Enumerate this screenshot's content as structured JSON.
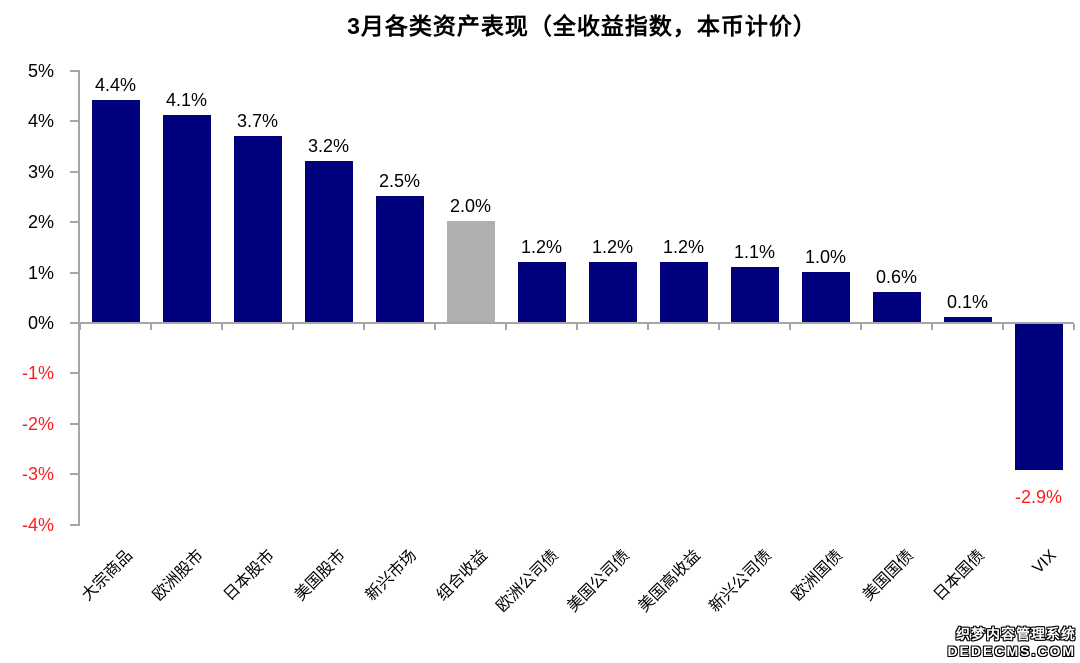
{
  "chart_data": {
    "type": "bar",
    "title": "3月各类资产表现（全收益指数，本币计价）",
    "categories": [
      "大宗商品",
      "欧洲股市",
      "日本股市",
      "美国股市",
      "新兴市场",
      "组合收益",
      "欧洲公司债",
      "美国公司债",
      "美国高收益",
      "新兴公司债",
      "欧洲国债",
      "美国国债",
      "日本国债",
      "VIX"
    ],
    "values": [
      4.4,
      4.1,
      3.7,
      3.2,
      2.5,
      2.0,
      1.2,
      1.2,
      1.2,
      1.1,
      1.0,
      0.6,
      0.1,
      -2.9
    ],
    "bar_labels": [
      "4.4%",
      "4.1%",
      "3.7%",
      "3.2%",
      "2.5%",
      "2.0%",
      "1.2%",
      "1.2%",
      "1.2%",
      "1.1%",
      "1.0%",
      "0.6%",
      "0.1%",
      "-2.9%"
    ],
    "bar_colors": [
      "#02017d",
      "#02017d",
      "#02017d",
      "#02017d",
      "#02017d",
      "#afafaf",
      "#02017d",
      "#02017d",
      "#02017d",
      "#02017d",
      "#02017d",
      "#02017d",
      "#02017d",
      "#02017d"
    ],
    "value_label_colors": [
      "#000000",
      "#000000",
      "#000000",
      "#000000",
      "#000000",
      "#000000",
      "#000000",
      "#000000",
      "#000000",
      "#000000",
      "#000000",
      "#000000",
      "#000000",
      "#fb1d1d"
    ],
    "y_ticks": [
      {
        "label": "5%",
        "value": 5
      },
      {
        "label": "4%",
        "value": 4
      },
      {
        "label": "3%",
        "value": 3
      },
      {
        "label": "2%",
        "value": 2
      },
      {
        "label": "1%",
        "value": 1
      },
      {
        "label": "0%",
        "value": 0
      },
      {
        "label": "-1%",
        "value": -1
      },
      {
        "label": "-2%",
        "value": -2
      },
      {
        "label": "-3%",
        "value": -3
      },
      {
        "label": "-4%",
        "value": -4
      }
    ],
    "ylim": [
      -4,
      5
    ],
    "xlabel": "",
    "ylabel": "",
    "grid": false,
    "legend": null
  },
  "colors": {
    "bar_navy": "#02017d",
    "bar_gray": "#afafaf",
    "negative_red": "#fb1d1d",
    "axis_gray": "#a6a6a6",
    "text_black": "#000000"
  },
  "watermark": {
    "line1": "织梦内容管理系统",
    "line2": "DEDECMS.COM"
  }
}
